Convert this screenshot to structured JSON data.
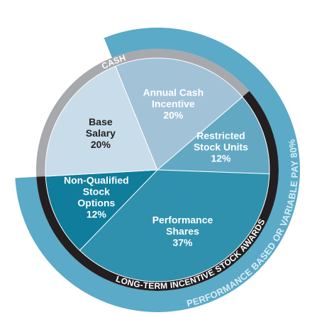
{
  "chart_data": {
    "type": "pie",
    "categories": [
      [
        "Annual Cash",
        "Incentive"
      ],
      [
        "Restricted",
        "Stock Units"
      ],
      [
        "Performance",
        "Shares"
      ],
      [
        "Non-Qualified",
        "Stock",
        "Options"
      ],
      [
        "Base",
        "Salary"
      ]
    ],
    "values": [
      20,
      12,
      37,
      12,
      20
    ],
    "value_labels": [
      "20%",
      "12%",
      "37%",
      "12%",
      "20%"
    ],
    "colors": [
      "#a2c2d7",
      "#62a8c3",
      "#2f91ae",
      "#0f7d9b",
      "#c9dce9"
    ],
    "label_colors": [
      "#ffffff",
      "#ffffff",
      "#ffffff",
      "#ffffff",
      "#222222"
    ],
    "rings": [
      {
        "name": "CASH",
        "color": "#a7a9ac",
        "members": [
          4,
          0
        ],
        "level": 0
      },
      {
        "name": "LONG-TERM INCENTIVE STOCK AWARDS",
        "color": "#231f20",
        "members": [
          1,
          2,
          3
        ],
        "level": 0
      },
      {
        "name": "PERFORMANCE BASED OR VARIABLE PAY 80%",
        "color": "#5aaac8",
        "members": [
          0,
          1,
          2,
          3
        ],
        "level": 1
      }
    ]
  }
}
